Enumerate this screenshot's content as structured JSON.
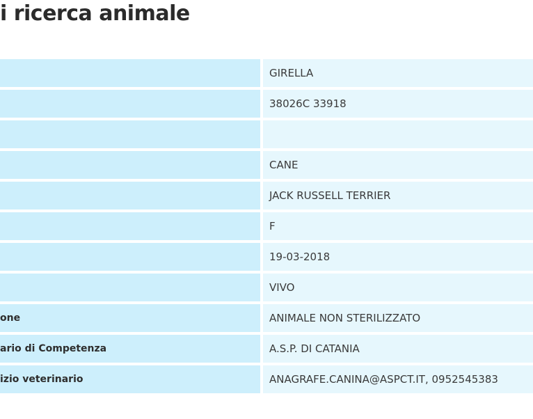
{
  "page": {
    "title": "i ricerca animale"
  },
  "rows": [
    {
      "label": "",
      "value": "GIRELLA"
    },
    {
      "label": "",
      "value": "38026C 33918"
    },
    {
      "label": "",
      "value": ""
    },
    {
      "label": "",
      "value": "CANE"
    },
    {
      "label": "",
      "value": "JACK RUSSELL TERRIER"
    },
    {
      "label": "",
      "value": "F"
    },
    {
      "label": "",
      "value": "19-03-2018"
    },
    {
      "label": "",
      "value": "VIVO"
    },
    {
      "label": "one",
      "value": "ANIMALE NON STERILIZZATO"
    },
    {
      "label": "ario di Competenza",
      "value": "A.S.P. DI CATANIA"
    },
    {
      "label": "izio veterinario",
      "value": "ANAGRAFE.CANINA@ASPCT.IT, 0952545383"
    }
  ],
  "colors": {
    "label_bg": "#cdeffc",
    "value_bg": "#e6f7fd",
    "title": "#2b2b2b"
  }
}
